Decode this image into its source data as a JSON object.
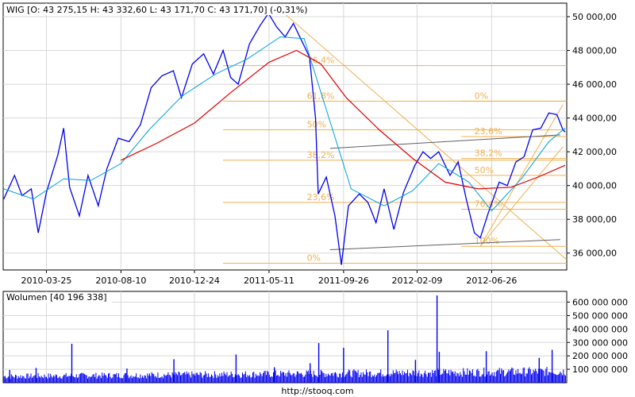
{
  "chart_data": [
    {
      "type": "line",
      "title": "WIG [O: 43 275,15  H: 43 332,60  L: 43 171,70  C: 43 171,70] (-0,31%)",
      "x_tick_labels": [
        "2010-03-25",
        "2010-08-10",
        "2010-12-24",
        "2011-05-11",
        "2011-09-26",
        "2012-02-09",
        "2012-06-26"
      ],
      "y_tick_labels": [
        "36 000,00",
        "38 000,00",
        "40 000,00",
        "42 000,00",
        "44 000,00",
        "46 000,00",
        "48 000,00",
        "50 000,00"
      ],
      "ylim": [
        35000,
        50800
      ],
      "grid": true,
      "colors": {
        "price": "#0000ee",
        "ma_short": "#00a0e0",
        "ma_long": "#dd0000",
        "fib": "#f0b050",
        "trend": "#606060",
        "grid": "#d8d8d8"
      },
      "series": [
        {
          "key": "price",
          "points": [
            [
              "2010-01-05",
              39200
            ],
            [
              "2010-01-25",
              40600
            ],
            [
              "2010-02-08",
              39400
            ],
            [
              "2010-02-25",
              39800
            ],
            [
              "2010-03-10",
              37200
            ],
            [
              "2010-03-25",
              39600
            ],
            [
              "2010-04-15",
              41800
            ],
            [
              "2010-04-26",
              43400
            ],
            [
              "2010-05-07",
              39900
            ],
            [
              "2010-05-25",
              38200
            ],
            [
              "2010-06-10",
              40600
            ],
            [
              "2010-06-29",
              38800
            ],
            [
              "2010-07-15",
              41000
            ],
            [
              "2010-08-05",
              42800
            ],
            [
              "2010-08-25",
              42600
            ],
            [
              "2010-09-15",
              43600
            ],
            [
              "2010-10-05",
              45800
            ],
            [
              "2010-10-25",
              46500
            ],
            [
              "2010-11-15",
              46800
            ],
            [
              "2010-11-30",
              45200
            ],
            [
              "2010-12-20",
              47200
            ],
            [
              "2011-01-10",
              47800
            ],
            [
              "2011-01-28",
              46600
            ],
            [
              "2011-02-15",
              48000
            ],
            [
              "2011-03-01",
              46400
            ],
            [
              "2011-03-15",
              46000
            ],
            [
              "2011-04-05",
              48400
            ],
            [
              "2011-04-25",
              49500
            ],
            [
              "2011-05-10",
              50200
            ],
            [
              "2011-05-25",
              49400
            ],
            [
              "2011-06-10",
              48800
            ],
            [
              "2011-06-25",
              49600
            ],
            [
              "2011-07-10",
              48600
            ],
            [
              "2011-07-25",
              47600
            ],
            [
              "2011-08-05",
              44000
            ],
            [
              "2011-08-10",
              39500
            ],
            [
              "2011-08-25",
              40500
            ],
            [
              "2011-09-10",
              38200
            ],
            [
              "2011-09-22",
              35300
            ],
            [
              "2011-10-05",
              38800
            ],
            [
              "2011-10-25",
              39500
            ],
            [
              "2011-11-10",
              39000
            ],
            [
              "2011-11-25",
              37800
            ],
            [
              "2011-12-10",
              39800
            ],
            [
              "2011-12-28",
              37400
            ],
            [
              "2012-01-15",
              39600
            ],
            [
              "2012-02-05",
              41200
            ],
            [
              "2012-02-20",
              42000
            ],
            [
              "2012-03-05",
              41600
            ],
            [
              "2012-03-20",
              42000
            ],
            [
              "2012-04-10",
              40600
            ],
            [
              "2012-04-25",
              41400
            ],
            [
              "2012-05-10",
              39200
            ],
            [
              "2012-05-25",
              37200
            ],
            [
              "2012-06-05",
              36900
            ],
            [
              "2012-06-20",
              38400
            ],
            [
              "2012-07-10",
              40200
            ],
            [
              "2012-07-25",
              40000
            ],
            [
              "2012-08-10",
              41400
            ],
            [
              "2012-08-25",
              41700
            ],
            [
              "2012-09-10",
              43300
            ],
            [
              "2012-09-25",
              43400
            ],
            [
              "2012-10-10",
              44300
            ],
            [
              "2012-10-25",
              44200
            ],
            [
              "2012-11-05",
              43300
            ],
            [
              "2012-11-09",
              43170
            ]
          ]
        },
        {
          "key": "ma_short",
          "points": [
            [
              "2010-01-05",
              39800
            ],
            [
              "2010-03-01",
              39200
            ],
            [
              "2010-04-26",
              40400
            ],
            [
              "2010-06-15",
              40300
            ],
            [
              "2010-08-10",
              41300
            ],
            [
              "2010-10-01",
              43300
            ],
            [
              "2010-12-01",
              45300
            ],
            [
              "2011-02-01",
              46600
            ],
            [
              "2011-04-01",
              47500
            ],
            [
              "2011-06-01",
              48800
            ],
            [
              "2011-07-15",
              48700
            ],
            [
              "2011-08-20",
              45000
            ],
            [
              "2011-10-10",
              39800
            ],
            [
              "2011-12-10",
              38800
            ],
            [
              "2012-02-01",
              39700
            ],
            [
              "2012-03-20",
              41300
            ],
            [
              "2012-05-15",
              40200
            ],
            [
              "2012-06-26",
              38500
            ],
            [
              "2012-08-20",
              40400
            ],
            [
              "2012-10-10",
              42600
            ],
            [
              "2012-11-09",
              43400
            ]
          ]
        },
        {
          "key": "ma_long",
          "points": [
            [
              "2010-08-10",
              41500
            ],
            [
              "2010-10-15",
              42500
            ],
            [
              "2010-12-24",
              43700
            ],
            [
              "2011-03-01",
              45500
            ],
            [
              "2011-05-11",
              47300
            ],
            [
              "2011-07-01",
              48000
            ],
            [
              "2011-08-15",
              47200
            ],
            [
              "2011-10-01",
              45200
            ],
            [
              "2011-12-01",
              43300
            ],
            [
              "2012-02-01",
              41600
            ],
            [
              "2012-04-01",
              40200
            ],
            [
              "2012-06-01",
              39800
            ],
            [
              "2012-08-01",
              39900
            ],
            [
              "2012-09-20",
              40500
            ],
            [
              "2012-11-09",
              41200
            ]
          ]
        }
      ],
      "fib_labels": [
        {
          "text": "76,4%",
          "level": 47100,
          "side": "left"
        },
        {
          "text": "61,8%",
          "level": 45000,
          "side": "left"
        },
        {
          "text": "50%",
          "level": 43300,
          "side": "left"
        },
        {
          "text": "38,2%",
          "level": 41500,
          "side": "left"
        },
        {
          "text": "23,6%",
          "level": 39000,
          "side": "left"
        },
        {
          "text": "0%",
          "level": 35400,
          "side": "left"
        },
        {
          "text": "0%",
          "level": 45000,
          "side": "right"
        },
        {
          "text": "23,6%",
          "level": 42900,
          "side": "right"
        },
        {
          "text": "38,2%",
          "level": 41600,
          "side": "right"
        },
        {
          "text": "50%",
          "level": 40600,
          "side": "right"
        },
        {
          "text": "76,4%",
          "level": 38600,
          "side": "right"
        },
        {
          "text": "100%",
          "level": 36400,
          "side": "right"
        }
      ]
    },
    {
      "type": "bar",
      "title": "Wolumen [40 196 338]",
      "y_tick_labels": [
        "100 000 000",
        "200 000 000",
        "300 000 000",
        "400 000 000",
        "500 000 000",
        "600 000 000"
      ],
      "ylim": [
        0,
        680000000
      ],
      "spikes": [
        [
          "2010-01-15",
          95000000
        ],
        [
          "2010-03-05",
          110000000
        ],
        [
          "2010-05-10",
          290000000
        ],
        [
          "2010-08-20",
          105000000
        ],
        [
          "2010-11-15",
          175000000
        ],
        [
          "2011-03-10",
          210000000
        ],
        [
          "2011-05-20",
          115000000
        ],
        [
          "2011-07-25",
          145000000
        ],
        [
          "2011-08-10",
          295000000
        ],
        [
          "2011-09-25",
          260000000
        ],
        [
          "2011-12-16",
          390000000
        ],
        [
          "2012-02-05",
          170000000
        ],
        [
          "2012-03-16",
          650000000
        ],
        [
          "2012-03-20",
          230000000
        ],
        [
          "2012-06-15",
          235000000
        ],
        [
          "2012-09-21",
          185000000
        ],
        [
          "2012-10-15",
          245000000
        ]
      ]
    }
  ],
  "footer": "http://stooq.com"
}
